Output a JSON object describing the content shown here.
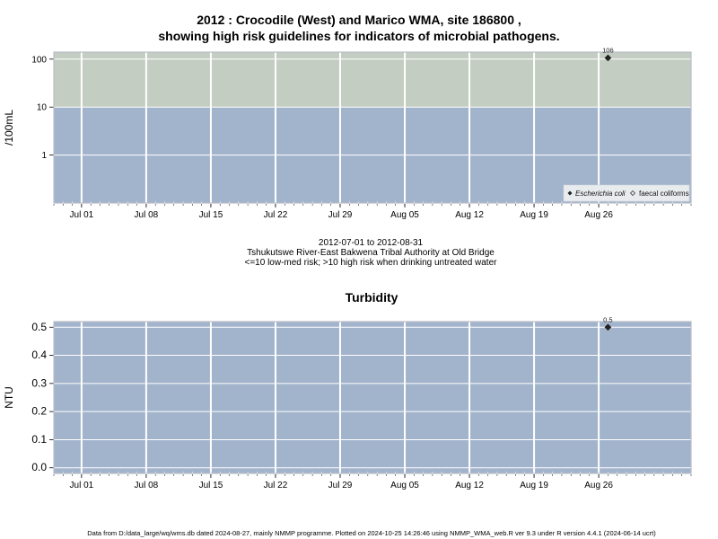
{
  "title_line1": "2012 : Crocodile (West) and Marico WMA, site 186800 ,",
  "title_line2": "showing high risk guidelines for indicators of microbial pathogens.",
  "info_line1": "2012-07-01 to 2012-08-31",
  "info_line2": "Tshukutswe River-East Bakwena Tribal Authority at Old Bridge",
  "info_line3": "<=10 low-med risk; >10 high risk when drinking untreated water",
  "footer": "Data from D:/data_large/wq/wms.db dated 2024-08-27, mainly NMMP programme. Plotted on 2024-10-25 14:26:46 using NMMP_WMA_web.R ver 9.3 under R version 4.4.1 (2024-06-14 ucrt)",
  "colors": {
    "high_risk_band": "#c4cdc2",
    "low_risk_band": "#a2b3cc",
    "grid": "#ffffff",
    "point": "#222222"
  },
  "chart_data": [
    {
      "type": "scatter",
      "title": "",
      "ylabel": "/100mL",
      "yscale": "log",
      "ylim": [
        0.1,
        140
      ],
      "y_ticks": [
        1,
        10,
        100
      ],
      "y_tick_labels": [
        "1",
        "10",
        "100"
      ],
      "xlim": [
        "2012-06-28",
        "2012-09-05"
      ],
      "x_ticks": [
        "2012-07-01",
        "2012-07-08",
        "2012-07-15",
        "2012-07-22",
        "2012-07-29",
        "2012-08-05",
        "2012-08-12",
        "2012-08-19",
        "2012-08-26"
      ],
      "x_tick_labels": [
        "Jul 01",
        "Jul 08",
        "Jul 15",
        "Jul 22",
        "Jul 29",
        "Aug 05",
        "Aug 12",
        "Aug 19",
        "Aug 26"
      ],
      "bands": [
        {
          "from": 10,
          "to": 140,
          "label": "high risk",
          "color": "#c4cdc2"
        },
        {
          "from": 0.1,
          "to": 10,
          "label": "low-med risk",
          "color": "#a2b3cc"
        }
      ],
      "legend_position": "bottom-right",
      "legend": [
        "Escherichia coli",
        "faecal coliforms"
      ],
      "series": [
        {
          "name": "Escherichia coli",
          "marker": "filled-diamond",
          "points": [
            {
              "x": "2012-08-27",
              "y": 106,
              "label": "106"
            }
          ]
        },
        {
          "name": "faecal coliforms",
          "marker": "open-diamond",
          "points": []
        }
      ],
      "grid": true
    },
    {
      "type": "scatter",
      "title": "Turbidity",
      "ylabel": "NTU",
      "ylim": [
        -0.02,
        0.52
      ],
      "y_ticks": [
        0.0,
        0.1,
        0.2,
        0.3,
        0.4,
        0.5
      ],
      "y_tick_labels": [
        "0.0",
        "0.1",
        "0.2",
        "0.3",
        "0.4",
        "0.5"
      ],
      "xlim": [
        "2012-06-28",
        "2012-09-05"
      ],
      "x_ticks": [
        "2012-07-01",
        "2012-07-08",
        "2012-07-15",
        "2012-07-22",
        "2012-07-29",
        "2012-08-05",
        "2012-08-12",
        "2012-08-19",
        "2012-08-26"
      ],
      "x_tick_labels": [
        "Jul 01",
        "Jul 08",
        "Jul 15",
        "Jul 22",
        "Jul 29",
        "Aug 05",
        "Aug 12",
        "Aug 19",
        "Aug 26"
      ],
      "series": [
        {
          "marker": "filled-diamond",
          "points": [
            {
              "x": "2012-08-27",
              "y": 0.5,
              "label": "0.5"
            }
          ]
        }
      ],
      "grid": true
    }
  ]
}
